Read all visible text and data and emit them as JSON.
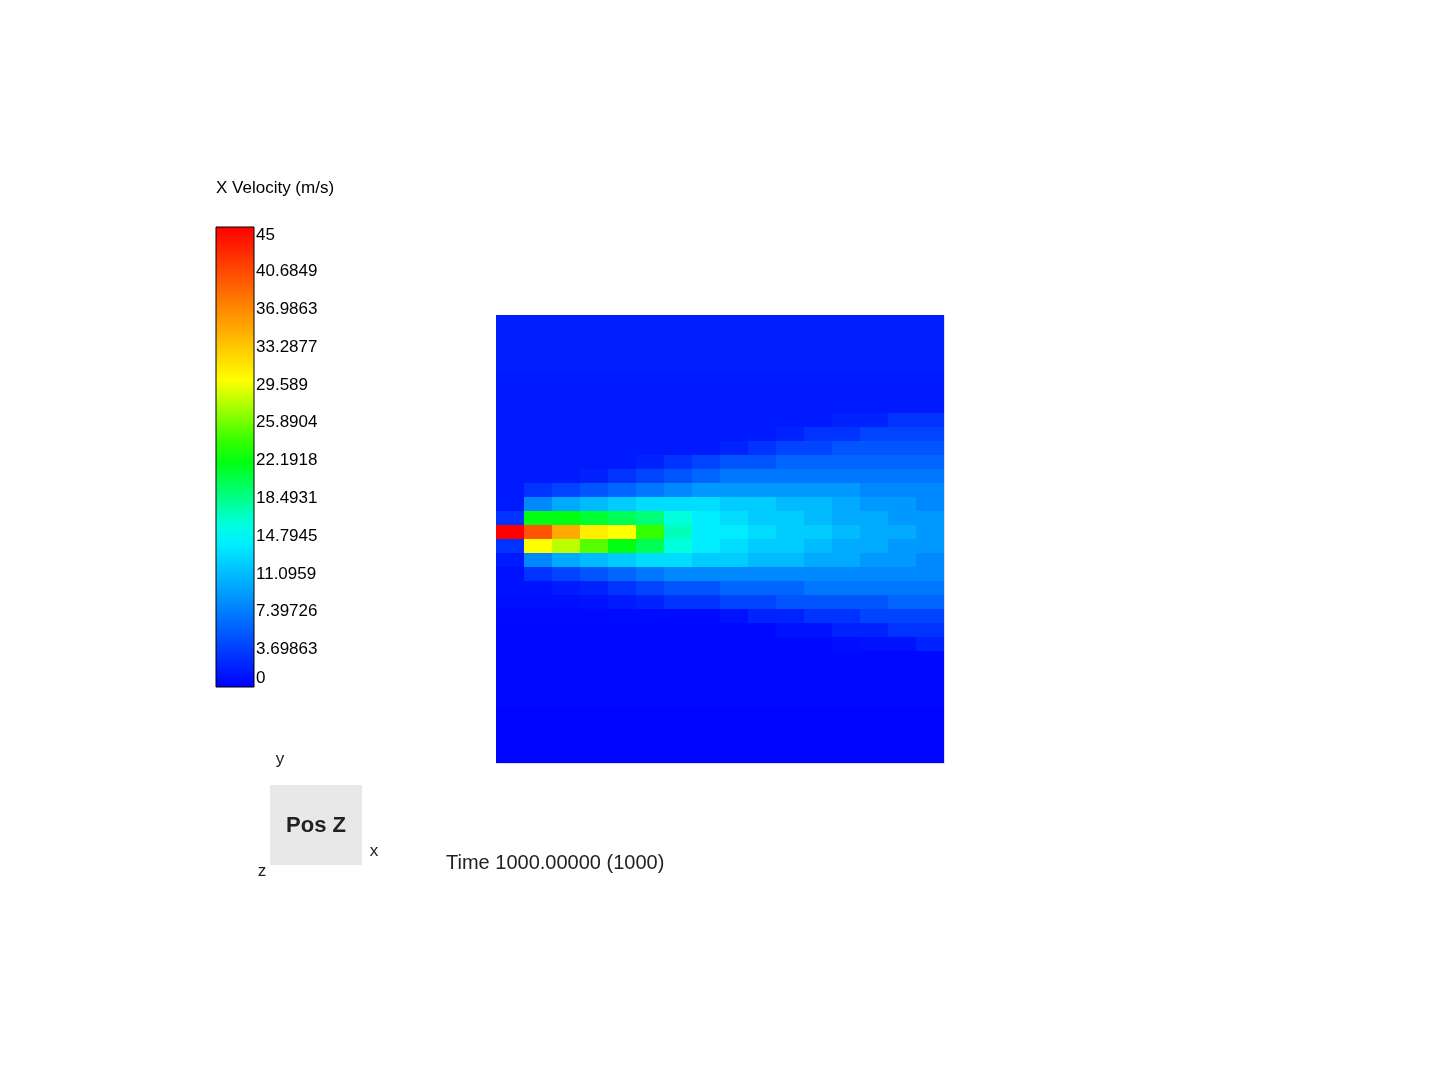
{
  "chart_data": {
    "type": "heatmap",
    "legend_title": "X Velocity (m/s)",
    "tick_labels": false,
    "categories": [
      null,
      null,
      null,
      null,
      null,
      null,
      null,
      null,
      null,
      null,
      null,
      null,
      null,
      null,
      null,
      null
    ],
    "y_categories": [
      null,
      null,
      null,
      null,
      null,
      null,
      null,
      null,
      null,
      null,
      null,
      null,
      null,
      null,
      null,
      null,
      null,
      null,
      null,
      null,
      null,
      null,
      null,
      null,
      null,
      null,
      null,
      null,
      null,
      null,
      null,
      null
    ],
    "clim": [
      0,
      45
    ],
    "cticks": [
      0,
      3.69863,
      7.39726,
      11.0959,
      14.7945,
      18.4931,
      22.1918,
      25.8904,
      29.589,
      33.2877,
      36.9863,
      40.6849,
      45
    ],
    "cells": [
      [
        1.8,
        1.8,
        1.8,
        1.8,
        1.8,
        1.8,
        1.8,
        1.8,
        1.8,
        1.8,
        1.8,
        1.8,
        1.8,
        1.8,
        1.8,
        1.8
      ],
      [
        1.8,
        1.8,
        1.8,
        1.8,
        1.8,
        1.8,
        1.8,
        1.8,
        1.8,
        1.8,
        1.8,
        1.8,
        1.8,
        1.8,
        1.8,
        1.8
      ],
      [
        1.8,
        1.8,
        1.8,
        1.8,
        1.8,
        1.8,
        1.8,
        1.8,
        1.8,
        1.8,
        1.8,
        1.8,
        1.8,
        1.8,
        1.8,
        1.8
      ],
      [
        1.8,
        1.8,
        1.8,
        1.8,
        1.8,
        1.8,
        1.8,
        1.8,
        1.8,
        1.8,
        1.8,
        1.8,
        1.8,
        1.8,
        1.8,
        1.8
      ],
      [
        1.5,
        1.5,
        1.5,
        1.5,
        1.5,
        1.5,
        1.5,
        1.5,
        1.5,
        1.5,
        1.5,
        1.5,
        1.5,
        1.5,
        1.5,
        1.5
      ],
      [
        1.5,
        1.5,
        1.5,
        1.5,
        1.5,
        1.5,
        1.5,
        1.5,
        1.5,
        1.5,
        1.5,
        1.5,
        1.5,
        1.5,
        1.5,
        1.5
      ],
      [
        1.5,
        1.5,
        1.5,
        1.5,
        1.5,
        1.5,
        1.5,
        1.5,
        1.5,
        1.5,
        1.5,
        1.5,
        1.5,
        1.5,
        1.5,
        1.5
      ],
      [
        1.5,
        1.5,
        1.5,
        1.5,
        1.5,
        1.5,
        1.5,
        1.5,
        1.5,
        1.5,
        1.5,
        1.5,
        2,
        2,
        3,
        3
      ],
      [
        1.5,
        1.5,
        1.5,
        1.5,
        1.5,
        1.5,
        1.5,
        1.5,
        1.5,
        1.5,
        2,
        3,
        3,
        4,
        4,
        4
      ],
      [
        1.5,
        1.5,
        1.5,
        1.5,
        1.5,
        1.5,
        1.5,
        1.5,
        2,
        3,
        4,
        4,
        5,
        5,
        5,
        5
      ],
      [
        1.5,
        1.5,
        1.5,
        1.5,
        1.5,
        2,
        3,
        4,
        5,
        5,
        6,
        6,
        6,
        6,
        6,
        6
      ],
      [
        1.5,
        1.5,
        1.5,
        2,
        3,
        4,
        5,
        6,
        7,
        7,
        7,
        7,
        7,
        7,
        7,
        7
      ],
      [
        1.5,
        3,
        4,
        5,
        6,
        7,
        8,
        9,
        9,
        9,
        9,
        9,
        9,
        8,
        8,
        8
      ],
      [
        1.5,
        8,
        10,
        11,
        12,
        13,
        13,
        13,
        12,
        12,
        11,
        11,
        10,
        9,
        9,
        8
      ],
      [
        3,
        22,
        22,
        21,
        20,
        19,
        16,
        14,
        13,
        12,
        12,
        11,
        10,
        10,
        9,
        9
      ],
      [
        45,
        40,
        35,
        31,
        30,
        24,
        17,
        14,
        14,
        13,
        12,
        12,
        11,
        10,
        10,
        9
      ],
      [
        3,
        30,
        28,
        25,
        22,
        20,
        16,
        14,
        13,
        12,
        12,
        11,
        10,
        10,
        9,
        9
      ],
      [
        1.5,
        8,
        10,
        11,
        12,
        13,
        13,
        12,
        12,
        11,
        11,
        10,
        10,
        9,
        9,
        8
      ],
      [
        1,
        3,
        4,
        5,
        6,
        7,
        8,
        8,
        8,
        8,
        8,
        8,
        8,
        8,
        8,
        8
      ],
      [
        1,
        1,
        1.5,
        2,
        3,
        4,
        5,
        5,
        6,
        6,
        6,
        7,
        7,
        7,
        7,
        7
      ],
      [
        0.8,
        0.8,
        0.8,
        1,
        1.5,
        2,
        3,
        3,
        4,
        4,
        5,
        5,
        5,
        5,
        6,
        6
      ],
      [
        0.6,
        0.6,
        0.6,
        0.6,
        0.6,
        0.6,
        0.6,
        0.6,
        1,
        2,
        2,
        3,
        3,
        4,
        4,
        4
      ],
      [
        0.5,
        0.5,
        0.5,
        0.5,
        0.5,
        0.5,
        0.5,
        0.5,
        0.5,
        0.5,
        1,
        1,
        2,
        2,
        3,
        3
      ],
      [
        0.5,
        0.5,
        0.5,
        0.5,
        0.5,
        0.5,
        0.5,
        0.5,
        0.5,
        0.5,
        0.5,
        0.5,
        0.8,
        1,
        1,
        2
      ],
      [
        0.5,
        0.5,
        0.5,
        0.5,
        0.5,
        0.5,
        0.5,
        0.5,
        0.5,
        0.5,
        0.5,
        0.5,
        0.5,
        0.5,
        0.5,
        0.5
      ],
      [
        0.5,
        0.5,
        0.5,
        0.5,
        0.5,
        0.5,
        0.5,
        0.5,
        0.5,
        0.5,
        0.5,
        0.5,
        0.5,
        0.5,
        0.5,
        0.5
      ],
      [
        0.5,
        0.5,
        0.5,
        0.5,
        0.5,
        0.5,
        0.5,
        0.5,
        0.5,
        0.5,
        0.5,
        0.5,
        0.5,
        0.5,
        0.5,
        0.5
      ],
      [
        0.5,
        0.5,
        0.5,
        0.5,
        0.5,
        0.5,
        0.5,
        0.5,
        0.5,
        0.5,
        0.5,
        0.5,
        0.5,
        0.5,
        0.5,
        0.5
      ],
      [
        0.3,
        0.3,
        0.3,
        0.3,
        0.3,
        0.3,
        0.3,
        0.3,
        0.3,
        0.3,
        0.3,
        0.3,
        0.3,
        0.3,
        0.3,
        0.3
      ],
      [
        0.3,
        0.3,
        0.3,
        0.3,
        0.3,
        0.3,
        0.3,
        0.3,
        0.3,
        0.3,
        0.3,
        0.3,
        0.3,
        0.3,
        0.3,
        0.3
      ],
      [
        0.3,
        0.3,
        0.3,
        0.3,
        0.3,
        0.3,
        0.3,
        0.3,
        0.3,
        0.3,
        0.3,
        0.3,
        0.3,
        0.3,
        0.3,
        0.3
      ],
      [
        0.3,
        0.3,
        0.3,
        0.3,
        0.3,
        0.3,
        0.3,
        0.3,
        0.3,
        0.3,
        0.3,
        0.3,
        0.3,
        0.3,
        0.3,
        0.3
      ]
    ],
    "annotations": [
      "Time 1000.00000 (1000)",
      "Pos Z",
      "y",
      "x",
      "z"
    ]
  }
}
